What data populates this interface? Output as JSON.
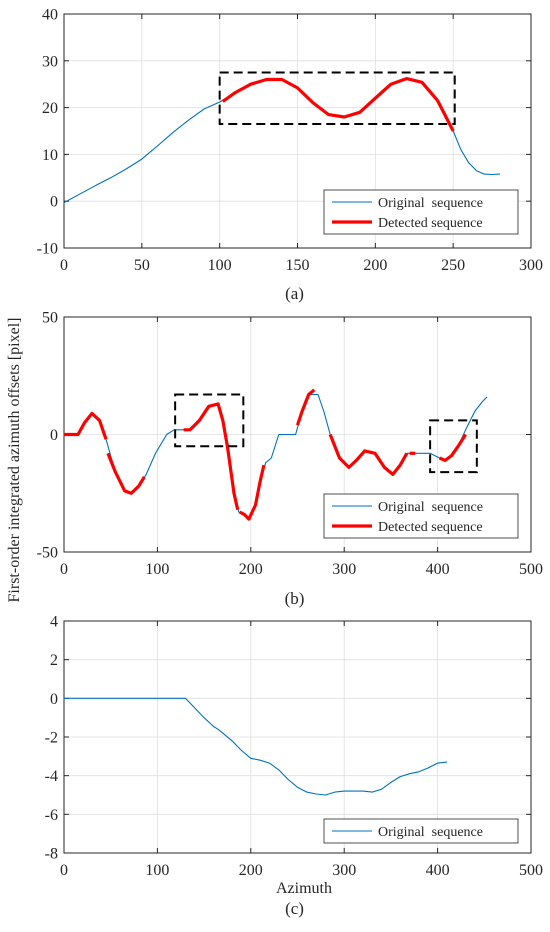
{
  "figure": {
    "ylabel": "First-order integrated azimuth offsets [pixel]",
    "xlabel": "Azimuth"
  },
  "colors": {
    "original": "#0072BD",
    "detected": "#FF0000",
    "axis": "#262626",
    "grid": "#DFDFDF",
    "box": "#000000"
  },
  "chart_data": [
    {
      "type": "line",
      "caption": "(a)",
      "xlim": [
        0,
        300
      ],
      "ylim": [
        -10,
        40
      ],
      "xticks": [
        0,
        50,
        100,
        150,
        200,
        250,
        300
      ],
      "yticks": [
        -10,
        0,
        10,
        20,
        30,
        40
      ],
      "grid": true,
      "legend_position": "bottom-right",
      "series": [
        {
          "name": "Original  sequence",
          "style": "thin",
          "x": [
            0,
            10,
            20,
            30,
            40,
            50,
            60,
            70,
            80,
            90,
            100,
            110,
            120,
            130,
            140,
            150,
            160,
            170,
            180,
            190,
            200,
            210,
            220,
            230,
            240,
            250,
            255,
            260,
            265,
            270,
            275,
            280
          ],
          "y": [
            -0.3,
            1.5,
            3.3,
            5.0,
            6.9,
            9.0,
            11.8,
            14.7,
            17.3,
            19.7,
            21.2,
            23.2,
            25.0,
            26.0,
            26.0,
            24.2,
            21.0,
            18.5,
            18.0,
            19.0,
            22.0,
            25.0,
            26.2,
            25.4,
            21.5,
            15.0,
            11.0,
            8.2,
            6.5,
            5.8,
            5.7,
            5.8
          ]
        },
        {
          "name": "Detected sequence",
          "style": "thick",
          "segments": [
            {
              "x": [
                102,
                110,
                120,
                130,
                140,
                150,
                160,
                170,
                180,
                190,
                200,
                210,
                220,
                230,
                240,
                250
              ],
              "y": [
                21.3,
                23.2,
                25.0,
                26.0,
                26.0,
                24.2,
                21.0,
                18.5,
                18.0,
                19.0,
                22.0,
                25.0,
                26.2,
                25.4,
                21.5,
                15.0
              ]
            }
          ]
        }
      ],
      "boxes": [
        {
          "x": [
            100,
            251
          ],
          "y": [
            16.5,
            27.5
          ]
        }
      ]
    },
    {
      "type": "line",
      "caption": "(b)",
      "xlim": [
        0,
        500
      ],
      "ylim": [
        -50,
        50
      ],
      "xticks": [
        0,
        100,
        200,
        300,
        400,
        500
      ],
      "yticks": [
        -50,
        0,
        50
      ],
      "grid": true,
      "legend_position": "bottom-right",
      "series": [
        {
          "name": "Original  sequence",
          "style": "thin",
          "x": [
            0,
            15,
            22,
            30,
            38,
            45,
            55,
            65,
            72,
            80,
            88,
            98,
            110,
            118,
            125,
            135,
            145,
            155,
            165,
            170,
            175,
            182,
            187,
            193,
            198,
            205,
            210,
            216,
            222,
            230,
            235,
            240,
            248,
            255,
            262,
            272,
            278,
            285,
            295,
            305,
            313,
            322,
            333,
            343,
            352,
            360,
            367,
            372,
            382,
            392,
            402,
            408,
            415,
            422,
            430,
            440,
            448,
            453
          ],
          "y": [
            0,
            0,
            5,
            9,
            6,
            -2,
            -16,
            -24,
            -25,
            -22,
            -17,
            -8,
            0,
            2,
            2,
            2,
            6,
            12,
            13,
            6,
            -5,
            -25,
            -33,
            -34,
            -36,
            -30,
            -20,
            -12,
            -10,
            0,
            0,
            0,
            0,
            10,
            17,
            17,
            10,
            0,
            -10,
            -14,
            -11,
            -7,
            -8,
            -14,
            -17,
            -13,
            -8,
            -8,
            -8,
            -8,
            -10,
            -11,
            -9,
            -5,
            2,
            10,
            14,
            16
          ]
        },
        {
          "name": "Detected sequence",
          "style": "thick",
          "segments": [
            {
              "x": [
                0,
                15,
                22,
                30,
                38,
                45
              ],
              "y": [
                0,
                0,
                5,
                9,
                6,
                -2
              ]
            },
            {
              "x": [
                47,
                55,
                65,
                72,
                80,
                86
              ],
              "y": [
                -8,
                -16,
                -24,
                -25,
                -22,
                -18
              ]
            },
            {
              "x": [
                128,
                135,
                145,
                155,
                165,
                170,
                175,
                182,
                186
              ],
              "y": [
                2,
                2,
                6,
                12,
                13,
                6,
                -5,
                -25,
                -32
              ]
            },
            {
              "x": [
                188,
                193,
                198,
                205,
                210,
                214
              ],
              "y": [
                -33,
                -34,
                -36,
                -30,
                -20,
                -13
              ]
            },
            {
              "x": [
                250,
                255,
                262,
                268
              ],
              "y": [
                4,
                10,
                17,
                19
              ]
            },
            {
              "x": [
                285,
                295,
                305,
                313,
                322,
                333,
                343,
                352,
                360,
                367
              ],
              "y": [
                0,
                -10,
                -14,
                -11,
                -7,
                -8,
                -14,
                -17,
                -13,
                -8
              ]
            },
            {
              "x": [
                370,
                376
              ],
              "y": [
                -8,
                -8
              ]
            },
            {
              "x": [
                402,
                408,
                415,
                422,
                430
              ],
              "y": [
                -10,
                -11,
                -9,
                -5,
                0
              ]
            }
          ]
        }
      ],
      "boxes": [
        {
          "x": [
            119,
            192
          ],
          "y": [
            -5,
            17
          ]
        },
        {
          "x": [
            392,
            442
          ],
          "y": [
            -16,
            6
          ]
        }
      ]
    },
    {
      "type": "line",
      "caption": "(c)",
      "xlim": [
        0,
        500
      ],
      "ylim": [
        -8,
        4
      ],
      "xticks": [
        0,
        100,
        200,
        300,
        400,
        500
      ],
      "yticks": [
        -8,
        -6,
        -4,
        -2,
        0,
        2,
        4
      ],
      "grid": true,
      "legend_position": "bottom-right",
      "series": [
        {
          "name": "Original  sequence",
          "style": "thin",
          "x": [
            0,
            100,
            130,
            140,
            150,
            160,
            165,
            170,
            180,
            190,
            200,
            210,
            220,
            230,
            240,
            250,
            260,
            270,
            280,
            290,
            300,
            310,
            320,
            330,
            340,
            350,
            360,
            370,
            380,
            390,
            400,
            410
          ],
          "y": [
            0,
            0,
            0,
            -0.5,
            -1.0,
            -1.45,
            -1.6,
            -1.8,
            -2.2,
            -2.7,
            -3.1,
            -3.2,
            -3.35,
            -3.7,
            -4.2,
            -4.6,
            -4.85,
            -4.95,
            -5.0,
            -4.85,
            -4.8,
            -4.8,
            -4.8,
            -4.85,
            -4.7,
            -4.35,
            -4.05,
            -3.9,
            -3.8,
            -3.6,
            -3.35,
            -3.3
          ]
        }
      ],
      "boxes": []
    }
  ]
}
